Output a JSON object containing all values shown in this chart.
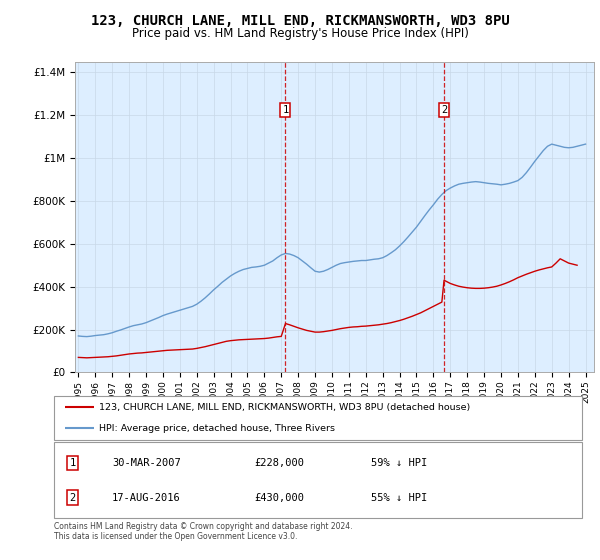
{
  "title": "123, CHURCH LANE, MILL END, RICKMANSWORTH, WD3 8PU",
  "subtitle": "Price paid vs. HM Land Registry's House Price Index (HPI)",
  "legend_line1": "123, CHURCH LANE, MILL END, RICKMANSWORTH, WD3 8PU (detached house)",
  "legend_line2": "HPI: Average price, detached house, Three Rivers",
  "footnote1": "Contains HM Land Registry data © Crown copyright and database right 2024.",
  "footnote2": "This data is licensed under the Open Government Licence v3.0.",
  "sale1_label": "1",
  "sale1_date": "30-MAR-2007",
  "sale1_price": "£228,000",
  "sale1_pct": "59% ↓ HPI",
  "sale1_year": 2007.25,
  "sale1_value": 228000,
  "sale2_label": "2",
  "sale2_date": "17-AUG-2016",
  "sale2_price": "£430,000",
  "sale2_pct": "55% ↓ HPI",
  "sale2_year": 2016.63,
  "sale2_value": 430000,
  "red_color": "#cc0000",
  "blue_color": "#6699cc",
  "background_color": "#ddeeff",
  "grid_color": "#c8d8e8",
  "box_color": "#cc0000",
  "ylim": [
    0,
    1450000
  ],
  "xlim_start": 1994.8,
  "xlim_end": 2025.5,
  "hpi_years": [
    1995.0,
    1995.25,
    1995.5,
    1995.75,
    1996.0,
    1996.25,
    1996.5,
    1996.75,
    1997.0,
    1997.25,
    1997.5,
    1997.75,
    1998.0,
    1998.25,
    1998.5,
    1998.75,
    1999.0,
    1999.25,
    1999.5,
    1999.75,
    2000.0,
    2000.25,
    2000.5,
    2000.75,
    2001.0,
    2001.25,
    2001.5,
    2001.75,
    2002.0,
    2002.25,
    2002.5,
    2002.75,
    2003.0,
    2003.25,
    2003.5,
    2003.75,
    2004.0,
    2004.25,
    2004.5,
    2004.75,
    2005.0,
    2005.25,
    2005.5,
    2005.75,
    2006.0,
    2006.25,
    2006.5,
    2006.75,
    2007.0,
    2007.25,
    2007.5,
    2007.75,
    2008.0,
    2008.25,
    2008.5,
    2008.75,
    2009.0,
    2009.25,
    2009.5,
    2009.75,
    2010.0,
    2010.25,
    2010.5,
    2010.75,
    2011.0,
    2011.25,
    2011.5,
    2011.75,
    2012.0,
    2012.25,
    2012.5,
    2012.75,
    2013.0,
    2013.25,
    2013.5,
    2013.75,
    2014.0,
    2014.25,
    2014.5,
    2014.75,
    2015.0,
    2015.25,
    2015.5,
    2015.75,
    2016.0,
    2016.25,
    2016.5,
    2016.75,
    2017.0,
    2017.25,
    2017.5,
    2017.75,
    2018.0,
    2018.25,
    2018.5,
    2018.75,
    2019.0,
    2019.25,
    2019.5,
    2019.75,
    2020.0,
    2020.25,
    2020.5,
    2020.75,
    2021.0,
    2021.25,
    2021.5,
    2021.75,
    2022.0,
    2022.25,
    2022.5,
    2022.75,
    2023.0,
    2023.25,
    2023.5,
    2023.75,
    2024.0,
    2024.25,
    2024.5,
    2024.75,
    2025.0
  ],
  "hpi_values": [
    170000,
    168000,
    167000,
    169000,
    172000,
    174000,
    176000,
    180000,
    185000,
    192000,
    198000,
    205000,
    212000,
    218000,
    222000,
    226000,
    232000,
    240000,
    248000,
    256000,
    265000,
    272000,
    278000,
    284000,
    290000,
    296000,
    302000,
    308000,
    318000,
    332000,
    348000,
    366000,
    385000,
    402000,
    420000,
    435000,
    450000,
    462000,
    472000,
    480000,
    485000,
    490000,
    492000,
    495000,
    500000,
    510000,
    520000,
    535000,
    548000,
    555000,
    552000,
    545000,
    535000,
    520000,
    505000,
    488000,
    472000,
    468000,
    472000,
    480000,
    490000,
    500000,
    508000,
    512000,
    515000,
    518000,
    520000,
    522000,
    522000,
    525000,
    528000,
    530000,
    535000,
    545000,
    558000,
    572000,
    590000,
    610000,
    632000,
    655000,
    678000,
    705000,
    732000,
    758000,
    782000,
    808000,
    830000,
    848000,
    860000,
    870000,
    878000,
    882000,
    885000,
    888000,
    890000,
    888000,
    885000,
    882000,
    880000,
    878000,
    875000,
    878000,
    882000,
    888000,
    895000,
    910000,
    932000,
    958000,
    985000,
    1010000,
    1035000,
    1055000,
    1065000,
    1060000,
    1055000,
    1050000,
    1048000,
    1050000,
    1055000,
    1060000,
    1065000
  ],
  "red_years": [
    1995.0,
    1995.25,
    1995.5,
    1995.75,
    1996.0,
    1996.25,
    1996.5,
    1996.75,
    1997.0,
    1997.25,
    1997.5,
    1997.75,
    1998.0,
    1998.25,
    1998.5,
    1998.75,
    1999.0,
    1999.25,
    1999.5,
    1999.75,
    2000.0,
    2000.25,
    2000.5,
    2000.75,
    2001.0,
    2001.25,
    2001.5,
    2001.75,
    2002.0,
    2002.25,
    2002.5,
    2002.75,
    2003.0,
    2003.25,
    2003.5,
    2003.75,
    2004.0,
    2004.25,
    2004.5,
    2004.75,
    2005.0,
    2005.25,
    2005.5,
    2005.75,
    2006.0,
    2006.25,
    2006.5,
    2006.75,
    2007.0,
    2007.25,
    2007.5,
    2007.75,
    2008.0,
    2008.25,
    2008.5,
    2008.75,
    2009.0,
    2009.25,
    2009.5,
    2009.75,
    2010.0,
    2010.25,
    2010.5,
    2010.75,
    2011.0,
    2011.25,
    2011.5,
    2011.75,
    2012.0,
    2012.25,
    2012.5,
    2012.75,
    2013.0,
    2013.25,
    2013.5,
    2013.75,
    2014.0,
    2014.25,
    2014.5,
    2014.75,
    2015.0,
    2015.25,
    2015.5,
    2015.75,
    2016.0,
    2016.25,
    2016.5,
    2016.63,
    2017.0,
    2017.25,
    2017.5,
    2017.75,
    2018.0,
    2018.25,
    2018.5,
    2018.75,
    2019.0,
    2019.25,
    2019.5,
    2019.75,
    2020.0,
    2020.25,
    2020.5,
    2020.75,
    2021.0,
    2021.25,
    2021.5,
    2021.75,
    2022.0,
    2022.25,
    2022.5,
    2022.75,
    2023.0,
    2023.25,
    2023.5,
    2023.75,
    2024.0,
    2024.25,
    2024.5
  ],
  "red_values": [
    70000,
    69000,
    68000,
    69000,
    70000,
    71000,
    72000,
    73000,
    75000,
    77000,
    80000,
    83000,
    86000,
    88000,
    90000,
    91000,
    93000,
    95000,
    97000,
    99000,
    101000,
    103000,
    104000,
    105000,
    106000,
    107000,
    108000,
    109000,
    112000,
    116000,
    120000,
    125000,
    130000,
    135000,
    140000,
    145000,
    148000,
    150000,
    152000,
    153000,
    154000,
    155000,
    156000,
    157000,
    158000,
    160000,
    163000,
    166000,
    168000,
    228000,
    222000,
    215000,
    208000,
    202000,
    196000,
    192000,
    188000,
    188000,
    190000,
    193000,
    196000,
    200000,
    204000,
    207000,
    210000,
    212000,
    213000,
    215000,
    216000,
    218000,
    220000,
    222000,
    225000,
    228000,
    232000,
    237000,
    242000,
    248000,
    255000,
    262000,
    270000,
    278000,
    288000,
    298000,
    308000,
    318000,
    328000,
    430000,
    415000,
    408000,
    402000,
    398000,
    395000,
    393000,
    392000,
    392000,
    393000,
    395000,
    398000,
    402000,
    408000,
    415000,
    423000,
    432000,
    442000,
    450000,
    458000,
    465000,
    472000,
    478000,
    483000,
    488000,
    492000,
    510000,
    530000,
    520000,
    510000,
    505000,
    500000
  ]
}
